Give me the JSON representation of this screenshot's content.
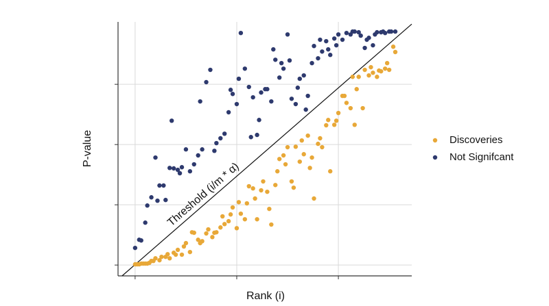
{
  "chart_data": {
    "type": "scatter",
    "x_label": "Rank (i)",
    "y_label": "P-value",
    "annotation": "Threshold (i/m * α)",
    "threshold": {
      "x": [
        -6.4,
        136.1
      ],
      "y": [
        -0.045,
        1.0
      ],
      "color": "#111111"
    },
    "xlim": [
      -8.4,
      136.1
    ],
    "ylim": [
      -0.045,
      1.009
    ],
    "xticks": [
      0,
      50,
      100
    ],
    "yticks": [
      0,
      0.25,
      0.5,
      0.75
    ],
    "tick_labels": false,
    "grid": true,
    "legend": "right",
    "series": [
      {
        "name": "Discoveries",
        "color": "#e8a838",
        "x": [
          0,
          1,
          2,
          3,
          4,
          5,
          6,
          7,
          8,
          9,
          10,
          12,
          13,
          15,
          16,
          17,
          19,
          20,
          21,
          23,
          24,
          25,
          27,
          28,
          29,
          31,
          32,
          33,
          35,
          36,
          38,
          39,
          40,
          42,
          43,
          44,
          46,
          47,
          48,
          50,
          51,
          52,
          54,
          55,
          56,
          58,
          59,
          60,
          62,
          63,
          65,
          66,
          67,
          69,
          70,
          71,
          73,
          74,
          75,
          77,
          78,
          79,
          81,
          82,
          83,
          85,
          86,
          87,
          88,
          90,
          91,
          92,
          94,
          95,
          96,
          98,
          99,
          100,
          102,
          103,
          104,
          106,
          107,
          108,
          109,
          110,
          112,
          113,
          115,
          116,
          117,
          119,
          120,
          121,
          123,
          124,
          125,
          127,
          128
        ],
        "values": [
          0.003,
          0.003,
          0.003,
          0.006,
          0.006,
          0.006,
          0.006,
          0.009,
          0.017,
          0.017,
          0.028,
          0.02,
          0.034,
          0.034,
          0.045,
          0.028,
          0.051,
          0.043,
          0.063,
          0.043,
          0.077,
          0.091,
          0.054,
          0.136,
          0.134,
          0.105,
          0.091,
          0.099,
          0.131,
          0.148,
          0.116,
          0.134,
          0.136,
          0.156,
          0.202,
          0.17,
          0.182,
          0.21,
          0.239,
          0.153,
          0.261,
          0.213,
          0.19,
          0.256,
          0.327,
          0.318,
          0.276,
          0.19,
          0.31,
          0.347,
          0.304,
          0.233,
          0.168,
          0.332,
          0.389,
          0.44,
          0.455,
          0.418,
          0.489,
          0.347,
          0.321,
          0.491,
          0.429,
          0.517,
          0.46,
          0.537,
          0.403,
          0.446,
          0.276,
          0.503,
          0.526,
          0.489,
          0.58,
          0.602,
          0.389,
          0.582,
          0.599,
          0.631,
          0.702,
          0.702,
          0.673,
          0.651,
          0.781,
          0.582,
          0.73,
          0.781,
          0.651,
          0.81,
          0.787,
          0.821,
          0.798,
          0.781,
          0.807,
          0.804,
          0.815,
          0.838,
          0.81,
          0.906,
          0.884
        ]
      },
      {
        "name": "Not Signifcant",
        "color": "#2e3a6e",
        "x": [
          0,
          2,
          3,
          5,
          6,
          8,
          10,
          11,
          12,
          14,
          15,
          17,
          18,
          19,
          21,
          22,
          23,
          25,
          27,
          29,
          31,
          32,
          33,
          35,
          37,
          39,
          40,
          42,
          44,
          46,
          47,
          48,
          50,
          51,
          52,
          54,
          56,
          57,
          58,
          60,
          61,
          62,
          64,
          65,
          67,
          68,
          69,
          71,
          72,
          73,
          75,
          76,
          77,
          79,
          80,
          81,
          83,
          84,
          85,
          87,
          88,
          90,
          91,
          92,
          94,
          95,
          96,
          98,
          99,
          100,
          102,
          104,
          106,
          107,
          108,
          110,
          111,
          113,
          114,
          115,
          117,
          118,
          119,
          121,
          122,
          123,
          125,
          126,
          128
        ],
        "values": [
          0.071,
          0.105,
          0.102,
          0.176,
          0.247,
          0.281,
          0.446,
          0.267,
          0.33,
          0.33,
          0.27,
          0.403,
          0.599,
          0.401,
          0.395,
          0.381,
          0.406,
          0.48,
          0.389,
          0.418,
          0.455,
          0.679,
          0.48,
          0.759,
          0.81,
          0.474,
          0.506,
          0.526,
          0.545,
          0.634,
          0.727,
          0.71,
          0.668,
          0.773,
          0.963,
          0.815,
          0.739,
          0.531,
          0.696,
          0.54,
          0.602,
          0.716,
          0.73,
          0.73,
          0.679,
          0.895,
          0.852,
          0.778,
          0.838,
          0.815,
          0.957,
          0.849,
          0.69,
          0.668,
          0.736,
          0.773,
          0.787,
          0.645,
          0.702,
          0.838,
          0.909,
          0.858,
          0.935,
          0.886,
          0.929,
          0.895,
          0.872,
          0.94,
          0.912,
          0.957,
          0.935,
          0.963,
          0.957,
          0.969,
          0.969,
          0.966,
          0.952,
          0.901,
          0.935,
          0.943,
          0.912,
          0.957,
          0.966,
          0.966,
          0.969,
          0.963,
          0.969,
          0.969,
          0.969
        ]
      }
    ]
  }
}
